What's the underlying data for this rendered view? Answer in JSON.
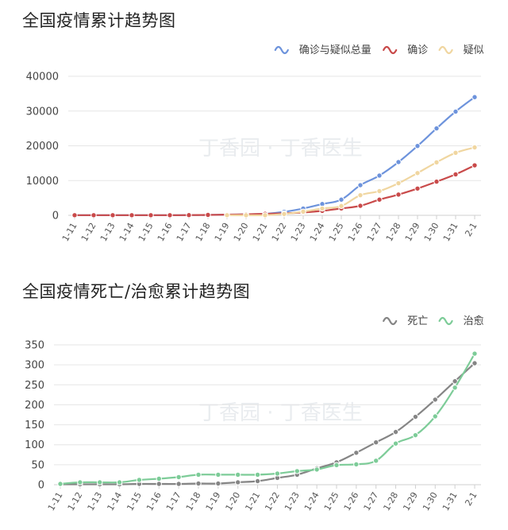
{
  "watermark": "丁香园 · 丁香医生",
  "chart_data": [
    {
      "type": "line",
      "title": "全国疫情累计趋势图",
      "categories": [
        "1-11",
        "1-12",
        "1-13",
        "1-14",
        "1-15",
        "1-16",
        "1-17",
        "1-18",
        "1-19",
        "1-20",
        "1-21",
        "1-22",
        "1-23",
        "1-24",
        "1-25",
        "1-26",
        "1-27",
        "1-28",
        "1-29",
        "1-30",
        "1-31",
        "2-1"
      ],
      "ylim": [
        0,
        40000
      ],
      "yticks": [
        0,
        10000,
        20000,
        30000,
        40000
      ],
      "grid": true,
      "legend_position": "top-right",
      "series": [
        {
          "name": "确诊与疑似总量",
          "color": "#6d93dc",
          "values": [
            41,
            41,
            41,
            41,
            41,
            45,
            62,
            121,
            198,
            291,
            440,
            1017,
            1965,
            3256,
            4516,
            8682,
            11445,
            15323,
            19959,
            25008,
            29849,
            34002
          ]
        },
        {
          "name": "确诊",
          "color": "#c94a4a",
          "values": [
            41,
            41,
            41,
            41,
            41,
            45,
            62,
            121,
            198,
            291,
            440,
            571,
            830,
            1287,
            1975,
            2744,
            4515,
            5974,
            7711,
            9692,
            11791,
            14380
          ]
        },
        {
          "name": "疑似",
          "color": "#f0d6a0",
          "start_index": 8,
          "values": [
            null,
            null,
            null,
            null,
            null,
            null,
            null,
            null,
            54,
            27,
            37,
            393,
            1072,
            1965,
            2684,
            5794,
            6973,
            9239,
            12167,
            15238,
            17988,
            19544
          ]
        }
      ]
    },
    {
      "type": "line",
      "title": "全国疫情死亡/治愈累计趋势图",
      "categories": [
        "1-11",
        "1-12",
        "1-13",
        "1-14",
        "1-15",
        "1-16",
        "1-17",
        "1-18",
        "1-19",
        "1-20",
        "1-21",
        "1-22",
        "1-23",
        "1-24",
        "1-25",
        "1-26",
        "1-27",
        "1-28",
        "1-29",
        "1-30",
        "1-31",
        "2-1"
      ],
      "ylim": [
        0,
        350
      ],
      "yticks": [
        0,
        50,
        100,
        150,
        200,
        250,
        300,
        350
      ],
      "grid": true,
      "legend_position": "top-right",
      "series": [
        {
          "name": "死亡",
          "color": "#858585",
          "values": [
            1,
            1,
            1,
            1,
            2,
            2,
            2,
            3,
            3,
            6,
            9,
            17,
            25,
            41,
            56,
            80,
            106,
            132,
            170,
            213,
            259,
            304
          ]
        },
        {
          "name": "治愈",
          "color": "#7dcc98",
          "values": [
            2,
            6,
            6,
            6,
            12,
            15,
            19,
            25,
            25,
            25,
            25,
            28,
            34,
            38,
            49,
            51,
            60,
            103,
            124,
            171,
            243,
            328
          ]
        }
      ]
    }
  ]
}
